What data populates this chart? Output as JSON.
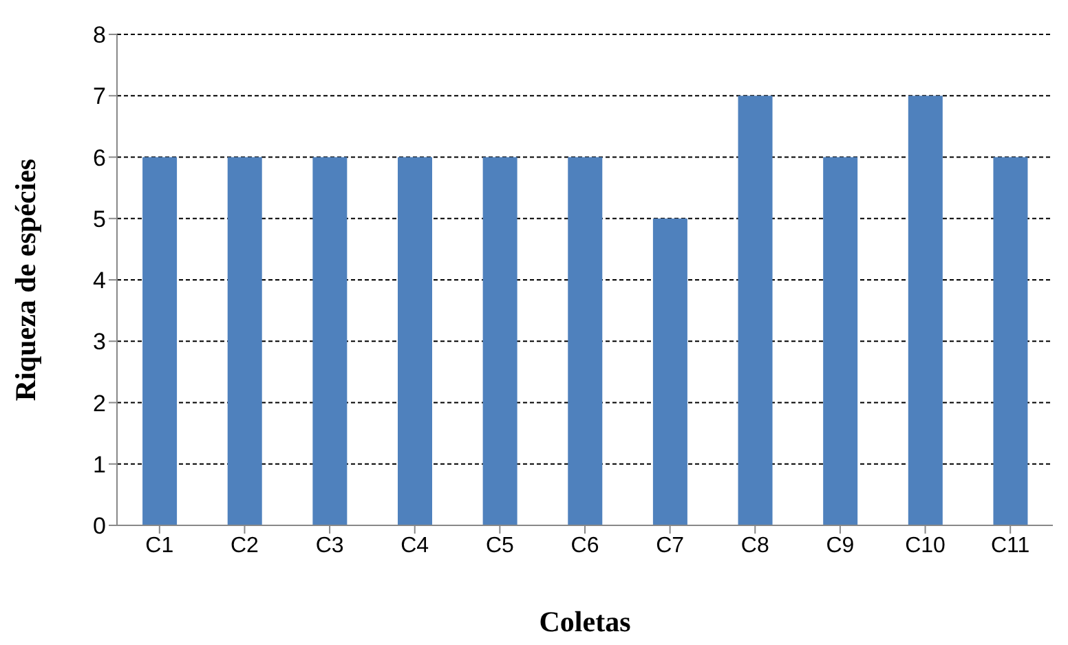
{
  "chart_data": {
    "type": "bar",
    "xlabel": "Coletas",
    "ylabel": "Riqueza de espécies",
    "categories": [
      "C1",
      "C2",
      "C3",
      "C4",
      "C5",
      "C6",
      "C7",
      "C8",
      "C9",
      "C10",
      "C11"
    ],
    "values": [
      6,
      6,
      6,
      6,
      6,
      6,
      5,
      7,
      6,
      7,
      6
    ],
    "color": "#4f81bd",
    "ylim": [
      0,
      8
    ],
    "yticks": [
      0,
      1,
      2,
      3,
      4,
      5,
      6,
      7,
      8
    ],
    "grid": "y",
    "legend": false
  }
}
